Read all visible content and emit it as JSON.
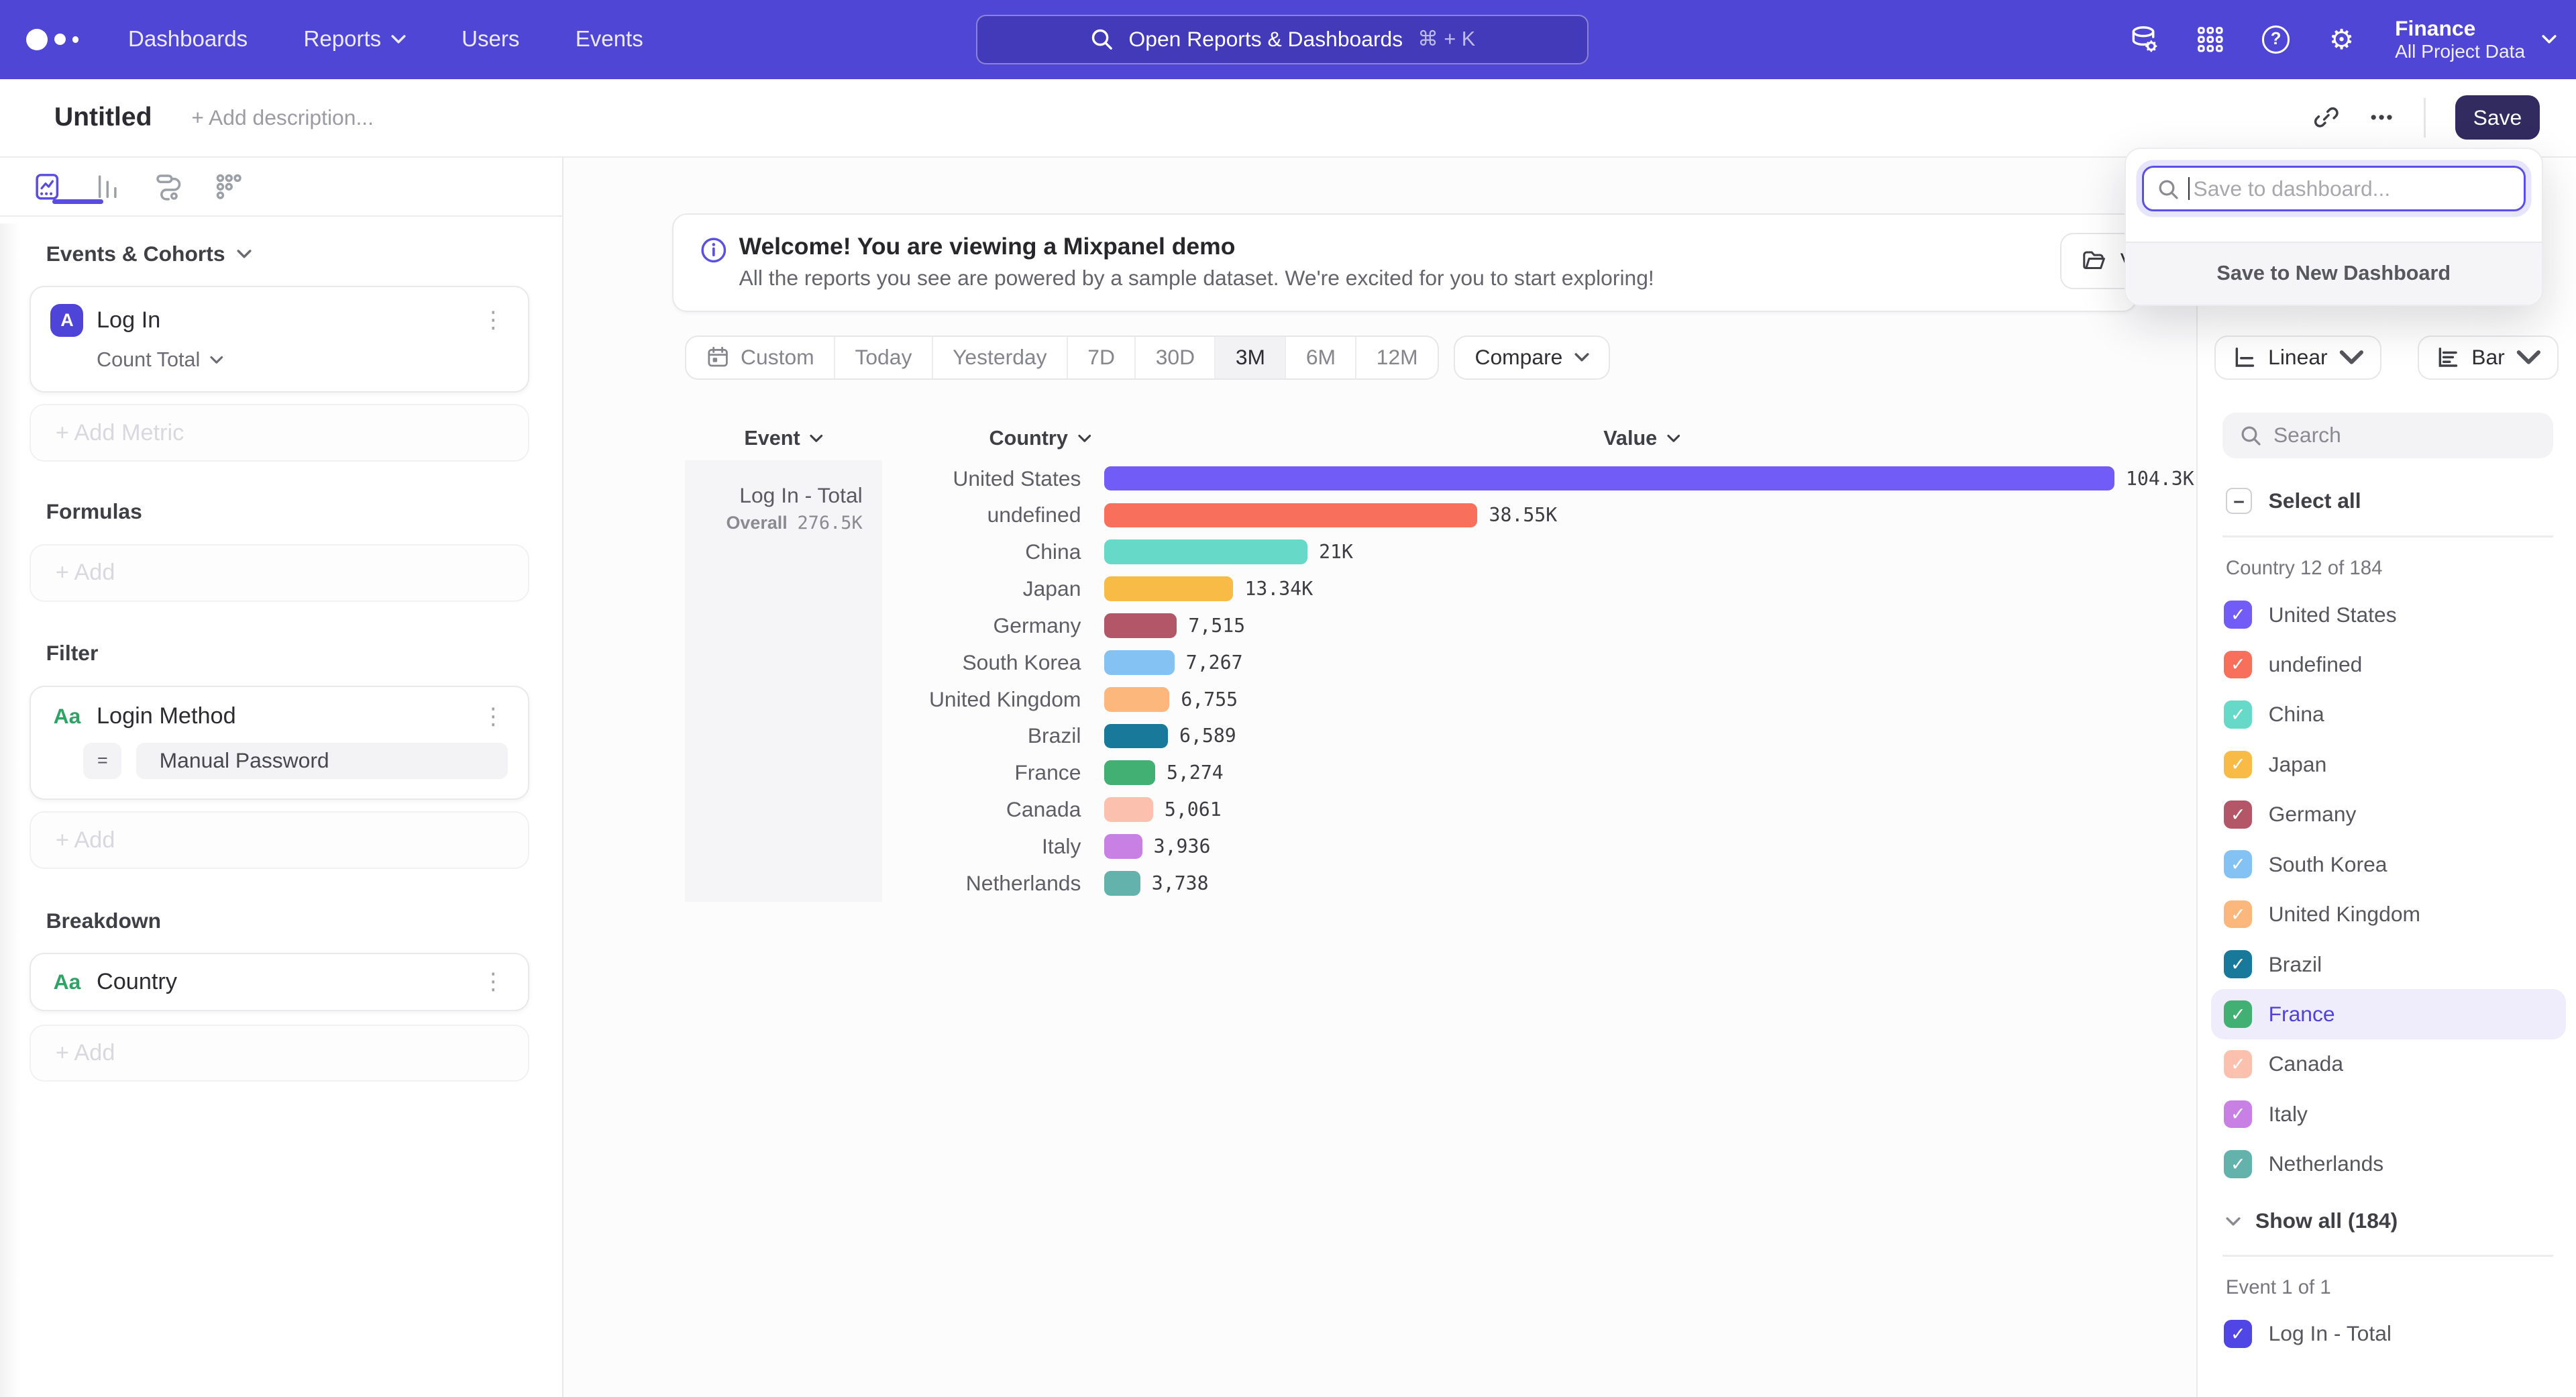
{
  "nav": {
    "links": [
      "Dashboards",
      "Reports",
      "Users",
      "Events"
    ],
    "search_placeholder": "Open Reports & Dashboards",
    "search_shortcut": "⌘ + K",
    "project_name": "Finance",
    "project_subtitle": "All Project Data",
    "help_glyph": "?"
  },
  "titlebar": {
    "title": "Untitled",
    "description_placeholder": "+ Add description...",
    "more_label": "•••",
    "save_label": "Save"
  },
  "save_popup": {
    "placeholder": "Save to dashboard...",
    "footer_label": "Save to New Dashboard"
  },
  "builder": {
    "events_header": "Events & Cohorts",
    "metric_badge": "A",
    "metric_name": "Log In",
    "metric_aggregation": "Count Total",
    "add_metric_label": "+ Add Metric",
    "formulas_header": "Formulas",
    "add_label": "+ Add",
    "filter_header": "Filter",
    "filter_badge": "Aa",
    "filter_name": "Login Method",
    "filter_operator": "=",
    "filter_value": "Manual Password",
    "breakdown_header": "Breakdown",
    "breakdown_badge": "Aa",
    "breakdown_name": "Country"
  },
  "banner": {
    "title": "Welcome! You are viewing a Mixpanel demo",
    "subtitle": "All the reports you see are powered by a sample dataset. We're excited for you to start exploring!",
    "button_visible_text": "V"
  },
  "toolbar": {
    "ranges": [
      "Custom",
      "Today",
      "Yesterday",
      "7D",
      "30D",
      "3M",
      "6M",
      "12M"
    ],
    "active_range": "3M",
    "compare_label": "Compare",
    "scale_label": "Linear",
    "chart_type_label": "Bar"
  },
  "chart": {
    "columns": [
      "Event",
      "Country",
      "Value"
    ],
    "series_label": "Log In - Total",
    "overall_label": "Overall",
    "overall_value": "276.5K"
  },
  "chart_data": {
    "type": "bar",
    "orientation": "horizontal",
    "title": "Log In - Total",
    "xlabel": "Value",
    "ylabel": "Country",
    "xlim": [
      0,
      104300
    ],
    "categories": [
      "United States",
      "undefined",
      "China",
      "Japan",
      "Germany",
      "South Korea",
      "United Kingdom",
      "Brazil",
      "France",
      "Canada",
      "Italy",
      "Netherlands"
    ],
    "values": [
      104300,
      38550,
      21000,
      13340,
      7515,
      7267,
      6755,
      6589,
      5274,
      5061,
      3936,
      3738
    ],
    "value_labels": [
      "104.3K",
      "38.55K",
      "21K",
      "13.34K",
      "7,515",
      "7,267",
      "6,755",
      "6,589",
      "5,274",
      "5,061",
      "3,936",
      "3,738"
    ],
    "colors": [
      "#715CF8",
      "#F8705B",
      "#66D9C9",
      "#F8BB45",
      "#B25668",
      "#84C2F4",
      "#FCB77C",
      "#19799A",
      "#42B073",
      "#FCC0AE",
      "#C980E5",
      "#63B2AB"
    ],
    "overall": "276.5K",
    "legend_position": "right"
  },
  "legend": {
    "search_placeholder": "Search",
    "select_all_label": "Select all",
    "group_label": "Country 12 of 184",
    "items": [
      {
        "label": "United States",
        "color": "#715CF8",
        "checked": true,
        "highlighted": false
      },
      {
        "label": "undefined",
        "color": "#F8705B",
        "checked": true,
        "highlighted": false
      },
      {
        "label": "China",
        "color": "#66D9C9",
        "checked": true,
        "highlighted": false
      },
      {
        "label": "Japan",
        "color": "#F8BB45",
        "checked": true,
        "highlighted": false
      },
      {
        "label": "Germany",
        "color": "#B25668",
        "checked": true,
        "highlighted": false
      },
      {
        "label": "South Korea",
        "color": "#84C2F4",
        "checked": true,
        "highlighted": false
      },
      {
        "label": "United Kingdom",
        "color": "#FCB77C",
        "checked": true,
        "highlighted": false
      },
      {
        "label": "Brazil",
        "color": "#19799A",
        "checked": true,
        "highlighted": false
      },
      {
        "label": "France",
        "color": "#42B073",
        "checked": true,
        "highlighted": true
      },
      {
        "label": "Canada",
        "color": "#FCC0AE",
        "checked": true,
        "highlighted": false
      },
      {
        "label": "Italy",
        "color": "#C980E5",
        "checked": true,
        "highlighted": false
      },
      {
        "label": "Netherlands",
        "color": "#63B2AB",
        "checked": true,
        "highlighted": false
      }
    ],
    "show_all_label": "Show all (184)",
    "event_group_label": "Event 1 of 1",
    "event_item_label": "Log In - Total",
    "event_item_color": "#4F46E5"
  },
  "glyphs": {
    "kebab": "⋮",
    "check": "✓",
    "indeterminate": "–",
    "gear": "⚙"
  }
}
